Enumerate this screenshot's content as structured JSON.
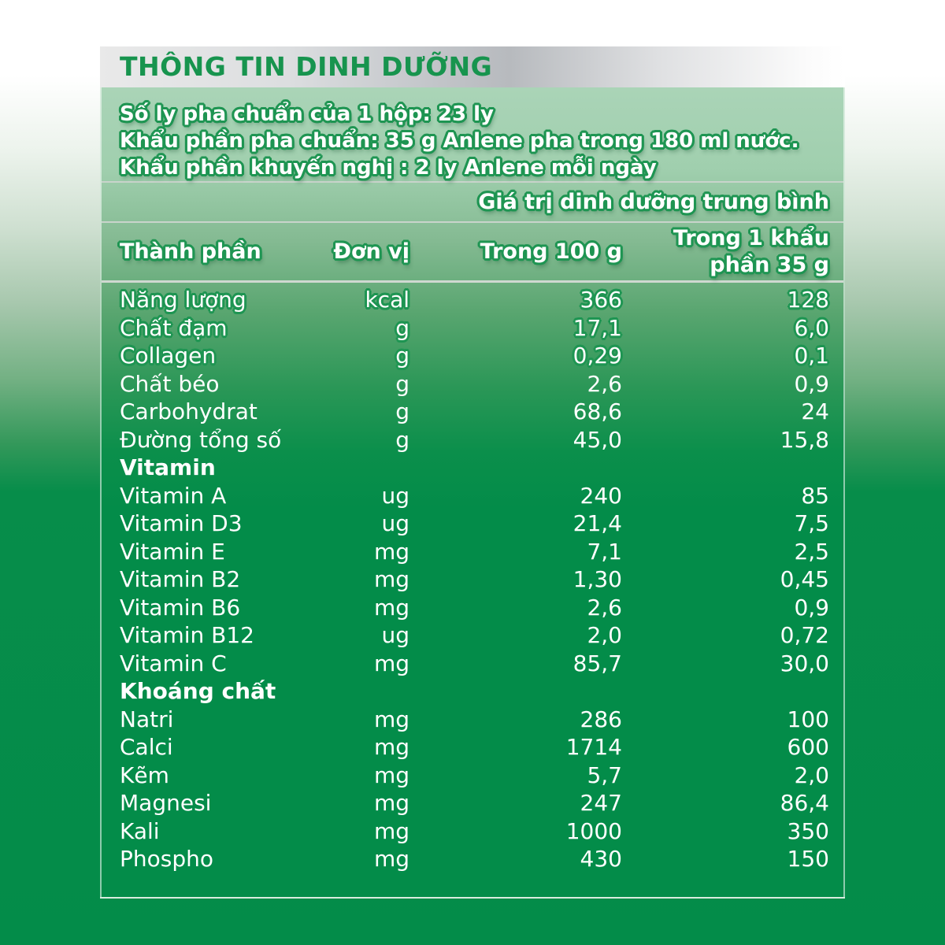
{
  "colors": {
    "accent_green": "#17944e",
    "panel_green_dark": "#038c49",
    "panel_green_light": "#aad4b7",
    "text_outline_green": "#1e9552",
    "title_band_silver": "#c2c5c9"
  },
  "header": {
    "title": "THÔNG TIN DINH DƯỠNG"
  },
  "intro": {
    "line1": "Số ly pha chuẩn của 1 hộp: 23 ly",
    "line2": "Khẩu phần pha chuẩn: 35 g Anlene pha trong 180 ml nước.",
    "line3": "Khẩu phần khuyến nghị : 2 ly Anlene mỗi ngày"
  },
  "table": {
    "avg_caption": "Giá trị dinh dưỡng trung bình",
    "columns": {
      "component": "Thành phần",
      "unit": "Đơn vị",
      "per_100g": "Trong 100 g",
      "per_serving": "Trong 1 khẩu\nphần 35 g"
    },
    "rows": [
      {
        "name": "Năng lượng",
        "unit": "kcal",
        "per_100g": "366",
        "per_serving": "128"
      },
      {
        "name": "Chất đạm",
        "unit": "g",
        "per_100g": "17,1",
        "per_serving": "6,0"
      },
      {
        "name": "Collagen",
        "unit": "g",
        "per_100g": "0,29",
        "per_serving": "0,1"
      },
      {
        "name": "Chất béo",
        "unit": "g",
        "per_100g": "2,6",
        "per_serving": "0,9"
      },
      {
        "name": "Carbohydrat",
        "unit": "g",
        "per_100g": "68,6",
        "per_serving": "24"
      },
      {
        "name": "Đường tổng số",
        "unit": "g",
        "per_100g": "45,0",
        "per_serving": "15,8"
      },
      {
        "name": "Vitamin",
        "unit": "",
        "per_100g": "",
        "per_serving": ""
      },
      {
        "name": "Vitamin A",
        "unit": "ug",
        "per_100g": "240",
        "per_serving": "85"
      },
      {
        "name": "Vitamin D3",
        "unit": "ug",
        "per_100g": "21,4",
        "per_serving": "7,5"
      },
      {
        "name": "Vitamin E",
        "unit": "mg",
        "per_100g": "7,1",
        "per_serving": "2,5"
      },
      {
        "name": "Vitamin B2",
        "unit": "mg",
        "per_100g": "1,30",
        "per_serving": "0,45"
      },
      {
        "name": "Vitamin B6",
        "unit": "mg",
        "per_100g": "2,6",
        "per_serving": "0,9"
      },
      {
        "name": "Vitamin B12",
        "unit": "ug",
        "per_100g": "2,0",
        "per_serving": "0,72"
      },
      {
        "name": "Vitamin C",
        "unit": "mg",
        "per_100g": "85,7",
        "per_serving": "30,0"
      },
      {
        "name": "Khoáng chất",
        "unit": "",
        "per_100g": "",
        "per_serving": ""
      },
      {
        "name": "Natri",
        "unit": "mg",
        "per_100g": "286",
        "per_serving": "100"
      },
      {
        "name": "Calci",
        "unit": "mg",
        "per_100g": "1714",
        "per_serving": "600"
      },
      {
        "name": "Kẽm",
        "unit": "mg",
        "per_100g": "5,7",
        "per_serving": "2,0"
      },
      {
        "name": "Magnesi",
        "unit": "mg",
        "per_100g": "247",
        "per_serving": "86,4"
      },
      {
        "name": "Kali",
        "unit": "mg",
        "per_100g": "1000",
        "per_serving": "350"
      },
      {
        "name": "Phospho",
        "unit": "mg",
        "per_100g": "430",
        "per_serving": "150"
      }
    ]
  }
}
